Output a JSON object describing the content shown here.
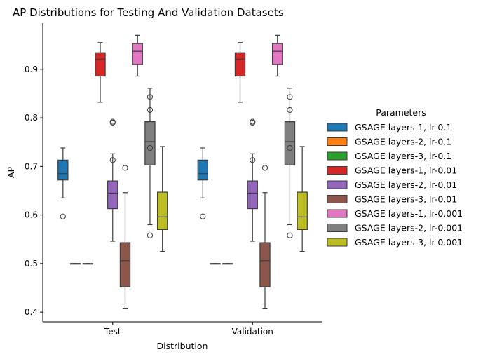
{
  "chart_data": {
    "type": "box",
    "title": "AP Distributions for Testing And Validation Datasets",
    "xlabel": "Distribution",
    "ylabel": "AP",
    "categories": [
      "Test",
      "Validation"
    ],
    "ylim": [
      0.38,
      0.995
    ],
    "yticks": [
      0.4,
      0.5,
      0.6,
      0.7,
      0.8,
      0.9
    ],
    "ytick_labels": [
      "0.4",
      "0.5",
      "0.6",
      "0.7",
      "0.8",
      "0.9"
    ],
    "legend": {
      "title": "Parameters",
      "placement": "right"
    },
    "series": [
      {
        "name": "GSAGE layers-1, lr-0.1",
        "color": "#1f77b4",
        "boxes": [
          {
            "whislo": 0.635,
            "q1": 0.672,
            "med": 0.685,
            "q3": 0.713,
            "whishi": 0.738,
            "fliers": [
              0.597
            ]
          },
          {
            "whislo": 0.635,
            "q1": 0.672,
            "med": 0.685,
            "q3": 0.713,
            "whishi": 0.738,
            "fliers": [
              0.597
            ]
          }
        ]
      },
      {
        "name": "GSAGE layers-2, lr-0.1",
        "color": "#ff7f0e",
        "boxes": [
          {
            "whislo": 0.5,
            "q1": 0.5,
            "med": 0.5,
            "q3": 0.5,
            "whishi": 0.5,
            "fliers": []
          },
          {
            "whislo": 0.5,
            "q1": 0.5,
            "med": 0.5,
            "q3": 0.5,
            "whishi": 0.5,
            "fliers": []
          }
        ]
      },
      {
        "name": "GSAGE layers-3, lr-0.1",
        "color": "#2ca02c",
        "boxes": [
          {
            "whislo": 0.5,
            "q1": 0.5,
            "med": 0.5,
            "q3": 0.5,
            "whishi": 0.5,
            "fliers": []
          },
          {
            "whislo": 0.5,
            "q1": 0.5,
            "med": 0.5,
            "q3": 0.5,
            "whishi": 0.5,
            "fliers": []
          }
        ]
      },
      {
        "name": "GSAGE layers-1, lr-0.01",
        "color": "#d62728",
        "boxes": [
          {
            "whislo": 0.832,
            "q1": 0.886,
            "med": 0.921,
            "q3": 0.934,
            "whishi": 0.955,
            "fliers": []
          },
          {
            "whislo": 0.832,
            "q1": 0.886,
            "med": 0.921,
            "q3": 0.934,
            "whishi": 0.955,
            "fliers": []
          }
        ]
      },
      {
        "name": "GSAGE layers-2, lr-0.01",
        "color": "#9467bd",
        "boxes": [
          {
            "whislo": 0.546,
            "q1": 0.613,
            "med": 0.645,
            "q3": 0.67,
            "whishi": 0.726,
            "fliers": [
              0.713,
              0.79,
              0.792
            ]
          },
          {
            "whislo": 0.546,
            "q1": 0.613,
            "med": 0.645,
            "q3": 0.67,
            "whishi": 0.726,
            "fliers": [
              0.713,
              0.79,
              0.792
            ]
          }
        ]
      },
      {
        "name": "GSAGE layers-3, lr-0.01",
        "color": "#8c564b",
        "boxes": [
          {
            "whislo": 0.408,
            "q1": 0.452,
            "med": 0.506,
            "q3": 0.543,
            "whishi": 0.646,
            "fliers": [
              0.697
            ]
          },
          {
            "whislo": 0.408,
            "q1": 0.452,
            "med": 0.506,
            "q3": 0.543,
            "whishi": 0.646,
            "fliers": [
              0.697
            ]
          }
        ]
      },
      {
        "name": "GSAGE layers-1, lr-0.001",
        "color": "#e377c2",
        "boxes": [
          {
            "whislo": 0.886,
            "q1": 0.91,
            "med": 0.937,
            "q3": 0.953,
            "whishi": 0.97,
            "fliers": []
          },
          {
            "whislo": 0.886,
            "q1": 0.91,
            "med": 0.937,
            "q3": 0.953,
            "whishi": 0.97,
            "fliers": []
          }
        ]
      },
      {
        "name": "GSAGE layers-2, lr-0.001",
        "color": "#7f7f7f",
        "boxes": [
          {
            "whislo": 0.58,
            "q1": 0.703,
            "med": 0.751,
            "q3": 0.792,
            "whishi": 0.861,
            "fliers": [
              0.558,
              0.738,
              0.816,
              0.843
            ]
          },
          {
            "whislo": 0.58,
            "q1": 0.703,
            "med": 0.751,
            "q3": 0.792,
            "whishi": 0.861,
            "fliers": [
              0.558,
              0.738,
              0.816,
              0.843
            ]
          }
        ]
      },
      {
        "name": "GSAGE layers-3, lr-0.001",
        "color": "#bcbd22",
        "boxes": [
          {
            "whislo": 0.525,
            "q1": 0.57,
            "med": 0.596,
            "q3": 0.647,
            "whishi": 0.741,
            "fliers": []
          },
          {
            "whislo": 0.525,
            "q1": 0.57,
            "med": 0.596,
            "q3": 0.647,
            "whishi": 0.741,
            "fliers": []
          }
        ]
      }
    ]
  }
}
